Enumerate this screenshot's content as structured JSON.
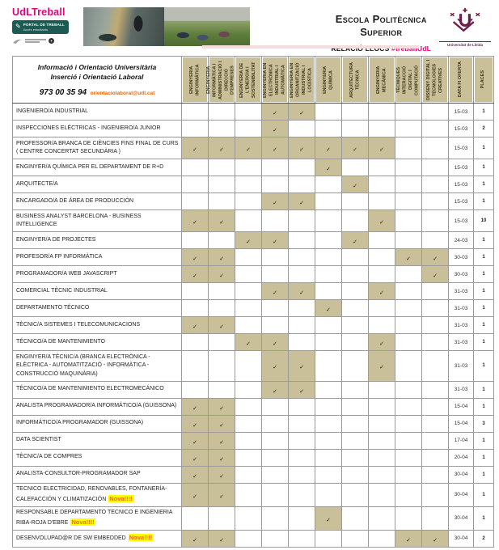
{
  "header": {
    "brand": {
      "title": "UdLTreball",
      "portal_line1": "PORTAL DE TREBALL",
      "portal_line2": "Accés estudiants"
    },
    "school_line1": "Escola Politècnica",
    "school_line2": "Superior",
    "relacio_label": "RELACIÓ LLOCS",
    "relacio_tag": "#treballUdL",
    "university_name": "Universitat de Lleida"
  },
  "info_cell": {
    "line1": "Informació i Orientació Universitària",
    "line2": "Inserció i  Orientació  Laboral",
    "phone": "973 00 35 94",
    "email": "orientaciolaboral@udl.cat"
  },
  "table": {
    "check_glyph": "✓",
    "degree_columns": [
      "Enginyeria Informàtica",
      "Enginyeria Informàtica i Administració i Direcció d'Empreses",
      "Enginyeria de l'Energia i Sostenibilitat",
      "Enginyeria en Electrònica Industrial i Automàtica",
      "Enginyeria en Organització Industrial i Logística",
      "Enginyeria Química",
      "Arquitectura Tècnica",
      "Enginyeria Mecànica",
      "Tècniques Interacció Digital i Computació",
      "Disseny Digital i Tecnologies Creatives"
    ],
    "date_column": "Data fi oferta",
    "places_column": "Places",
    "rows": [
      {
        "title": "INGENIERO/A INDUSTRIAL",
        "checks": [
          4,
          5
        ],
        "date": "15-03",
        "places": "1"
      },
      {
        "title": "INSPECCIONES ELÉCTRICAS  - INGENIERO/A JUNIOR",
        "checks": [
          4
        ],
        "date": "15-03",
        "places": "2"
      },
      {
        "title": "PROFESSOR/A BRANCA DE CIÈNCIES FINS FINAL DE CURS ( CENTRE CONCERTAT SECUNDÀRIA )",
        "checks": [
          1,
          2,
          3,
          4,
          5,
          6,
          7,
          8
        ],
        "date": "15-03",
        "places": "1"
      },
      {
        "title": "ENGINYER/A QUÍMICA PER EL DEPARTAMENT DE R+D",
        "checks": [
          6
        ],
        "date": "15-03",
        "places": "1"
      },
      {
        "title": "ARQUITECTE/A",
        "checks": [
          7
        ],
        "date": "15-03",
        "places": "1"
      },
      {
        "title": "ENCARGADO/A DE ÁREA DE PRODUCCIÓN",
        "checks": [
          4,
          5
        ],
        "date": "15-03",
        "places": "1"
      },
      {
        "title": "BUSINESS ANALYST BARCELONA - BUSINESS INTELLIGENCE",
        "checks": [
          1,
          2,
          8
        ],
        "date": "15-03",
        "places": "10"
      },
      {
        "title": "ENGINYER/A DE PROJECTES",
        "checks": [
          3,
          4,
          7
        ],
        "date": "24-03",
        "places": "1"
      },
      {
        "title": "PROFESOR/A FP INFORMÀTICA",
        "checks": [
          1,
          2,
          9,
          10
        ],
        "date": "30-03",
        "places": "1"
      },
      {
        "title": "PROGRAMADOR/A WEB JAVASCRIPT",
        "checks": [
          1,
          2,
          10
        ],
        "date": "30-03",
        "places": "1"
      },
      {
        "title": "COMERCIAL TÈCNIC INDUSTRIAL",
        "checks": [
          4,
          5,
          8
        ],
        "date": "31-03",
        "places": "1"
      },
      {
        "title": "DEPARTAMENTO TÉCNICO",
        "checks": [
          6
        ],
        "date": "31-03",
        "places": "1"
      },
      {
        "title": "TÈCNIC/A SISTEMES I TELECOMUNICACIONS",
        "checks": [
          1,
          2
        ],
        "date": "31-03",
        "places": "1"
      },
      {
        "title": "TÉCNICO/A DE MANTENIMIENTO",
        "checks": [
          3,
          4,
          8
        ],
        "date": "31-03",
        "places": "1"
      },
      {
        "title": "ENGINYER/A TÈCNIC/A (BRANCA ELECTRÒNICA - ELÈCTRICA - AUTOMATITZACIÓ - INFORMÀTICA - CONSTRUCCIÓ MAQUINÀRIA)",
        "checks": [
          4,
          5,
          8
        ],
        "date": "31-03",
        "places": "1"
      },
      {
        "title": "TÉCNICO/A DE MANTENIMIENTO ELECTROMECÁNICO",
        "checks": [
          4,
          5
        ],
        "date": "31-03",
        "places": "1"
      },
      {
        "title": "ANALISTA PROGRAMADOR/A INFORMÁTICO/A (GUISSONA)",
        "checks": [
          1,
          2
        ],
        "date": "15-04",
        "places": "1"
      },
      {
        "title": "INFORMÁTICO/A PROGRAMADOR (GUISSONA)",
        "checks": [
          1,
          2
        ],
        "date": "15-04",
        "places": "3"
      },
      {
        "title": "DATA SCIENTIST",
        "checks": [
          1,
          2
        ],
        "date": "17-04",
        "places": "1"
      },
      {
        "title": "TÈCNIC/A DE COMPRES",
        "checks": [
          1,
          2
        ],
        "date": "20-04",
        "places": "1"
      },
      {
        "title": "ANALISTA-CONSULTOR-PROGRAMADOR SAP",
        "checks": [
          1,
          2
        ],
        "date": "30-04",
        "places": "1"
      },
      {
        "title": "TECNICO ELECTRICIDAD, RENOVABLES, FONTANERÍA-CALEFACCIÓN Y CLIMATIZACIÓN",
        "nova": "Nova!!!!",
        "checks": [
          1,
          2
        ],
        "date": "30-04",
        "places": "1"
      },
      {
        "title": "RESPONSABLE DEPARTAMENTO TECNICO E INGENIERIA RIBA-ROJA D'EBRE",
        "nova": "Nova!!!!",
        "checks": [
          6
        ],
        "date": "30-04",
        "places": "1"
      },
      {
        "title": "DESENVOLUPAD@R DE SW EMBEDDED",
        "nova": "Nova!!!!",
        "checks": [
          1,
          2,
          9,
          10
        ],
        "date": "30-04",
        "places": "2"
      }
    ]
  },
  "colors": {
    "tan": "#c9c09a",
    "pink": "#e6007e",
    "teal": "#1d5a52",
    "orange": "#e36c0a",
    "nova_orange": "#f26a21",
    "highlight_yellow": "#ffff00",
    "maroon": "#6b1f4a"
  }
}
